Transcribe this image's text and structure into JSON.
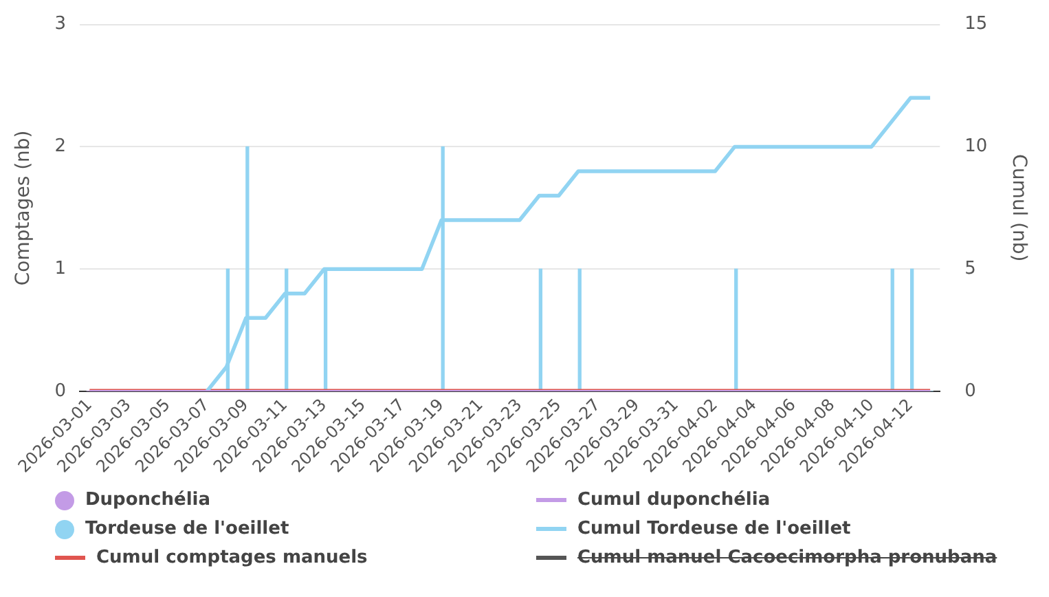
{
  "chart_data": {
    "type": "bar",
    "ylabel": "Comptages (nb)",
    "y2label": "Cumul (nb)",
    "categories": [
      "2026-03-01",
      null,
      "2026-03-03",
      null,
      "2026-03-05",
      null,
      "2026-03-07",
      null,
      "2026-03-09",
      null,
      "2026-03-11",
      null,
      "2026-03-13",
      null,
      "2026-03-15",
      null,
      "2026-03-17",
      null,
      "2026-03-19",
      null,
      "2026-03-21",
      null,
      "2026-03-23",
      null,
      "2026-03-25",
      null,
      "2026-03-27",
      null,
      "2026-03-29",
      null,
      "2026-03-31",
      null,
      "2026-04-02",
      null,
      "2026-04-04",
      null,
      "2026-04-06",
      null,
      "2026-04-08",
      null,
      "2026-04-10",
      null,
      "2026-04-12",
      null
    ],
    "series": [
      {
        "name": "Duponchélia",
        "color": "#c39be6",
        "values": [
          0,
          0,
          0,
          0,
          0,
          0,
          0,
          0,
          0,
          0,
          0,
          0,
          0,
          0,
          0,
          0,
          0,
          0,
          0,
          0,
          0,
          0,
          0,
          0,
          0,
          0,
          0,
          0,
          0,
          0,
          0,
          0,
          0,
          0,
          0,
          0,
          0,
          0,
          0,
          0,
          0,
          0,
          0,
          0
        ]
      },
      {
        "name": "Cumul duponchélia",
        "type": "line",
        "axis": "y2",
        "color": "#c39be6",
        "values": [
          0,
          0,
          0,
          0,
          0,
          0,
          0,
          0,
          0,
          0,
          0,
          0,
          0,
          0,
          0,
          0,
          0,
          0,
          0,
          0,
          0,
          0,
          0,
          0,
          0,
          0,
          0,
          0,
          0,
          0,
          0,
          0,
          0,
          0,
          0,
          0,
          0,
          0,
          0,
          0,
          0,
          0,
          0,
          0
        ]
      },
      {
        "name": "Tordeuse de l'oeillet",
        "color": "#91d4f2",
        "values": [
          0,
          0,
          0,
          0,
          0,
          0,
          0,
          1,
          2,
          0,
          1,
          0,
          1,
          0,
          0,
          0,
          0,
          0,
          2,
          0,
          0,
          0,
          0,
          1,
          0,
          1,
          0,
          0,
          0,
          0,
          0,
          0,
          0,
          1,
          0,
          0,
          0,
          0,
          0,
          0,
          0,
          1,
          1,
          0
        ]
      },
      {
        "name": "Cumul Tordeuse de l'oeillet",
        "type": "line",
        "axis": "y2",
        "color": "#91d4f2",
        "values": [
          null,
          null,
          null,
          null,
          null,
          null,
          0,
          1,
          3,
          3,
          4,
          4,
          5,
          5,
          5,
          5,
          5,
          5,
          7,
          7,
          7,
          7,
          7,
          8,
          8,
          9,
          9,
          9,
          9,
          9,
          9,
          9,
          9,
          10,
          10,
          10,
          10,
          10,
          10,
          10,
          10,
          11,
          12,
          12
        ]
      },
      {
        "name": "Cumul comptages manuels",
        "type": "line",
        "axis": "y2",
        "color": "#e0554f",
        "values": [
          0,
          0,
          0,
          0,
          0,
          0,
          0,
          0,
          0,
          0,
          0,
          0,
          0,
          0,
          0,
          0,
          0,
          0,
          0,
          0,
          0,
          0,
          0,
          0,
          0,
          0,
          0,
          0,
          0,
          0,
          0,
          0,
          0,
          0,
          0,
          0,
          0,
          0,
          0,
          0,
          0,
          0,
          0,
          0
        ]
      },
      {
        "name": "Cumul manuel Cacoecimorpha pronubana",
        "type": "line",
        "axis": "y2",
        "color": "#555555",
        "values": [
          null,
          null,
          null,
          null,
          null,
          null,
          null,
          null,
          null,
          null,
          null,
          null,
          null,
          null,
          null,
          null,
          null,
          null,
          null,
          null,
          null,
          null,
          null,
          null,
          null,
          null,
          null,
          null,
          null,
          null,
          null,
          null,
          null,
          null,
          null,
          null,
          null,
          null,
          null,
          null,
          null,
          null,
          null,
          null
        ]
      }
    ],
    "ylim": [
      0,
      3
    ],
    "yticks": [
      0,
      1,
      2,
      3
    ],
    "y2lim": [
      0,
      15
    ],
    "y2ticks": [
      0,
      5,
      10,
      15
    ],
    "grid": "y",
    "legend": "bottom",
    "marker": "none"
  }
}
